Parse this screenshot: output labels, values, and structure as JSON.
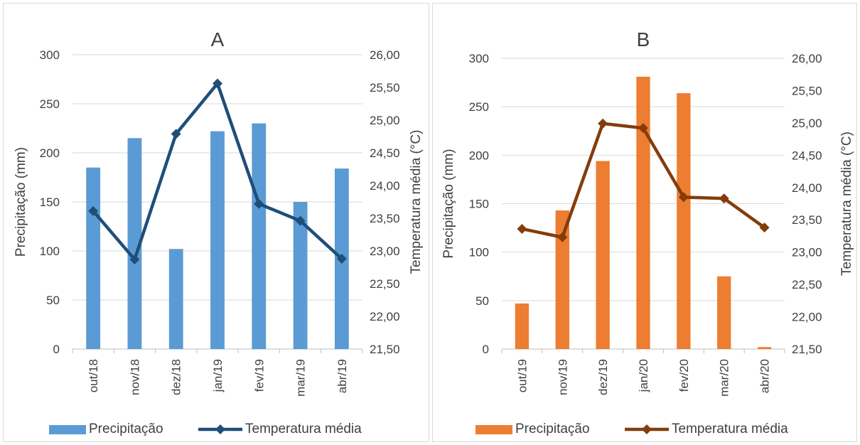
{
  "chart_data": [
    {
      "type": "bar",
      "title": "A",
      "categories": [
        "out/18",
        "nov/18",
        "dez/18",
        "jan/19",
        "fev/19",
        "mar/19",
        "abr/19"
      ],
      "ylabel": "Precipitação (mm)",
      "y2label": "Temperatura média (°C)",
      "ylim": [
        0,
        300
      ],
      "y2lim": [
        21.5,
        26.0
      ],
      "yticks": [
        "0",
        "50",
        "100",
        "150",
        "200",
        "250",
        "300"
      ],
      "y2ticks": [
        "21,50",
        "22,00",
        "22,50",
        "23,00",
        "23,50",
        "24,00",
        "24,50",
        "25,00",
        "25,50",
        "26,00"
      ],
      "series": [
        {
          "name": "Precipitação",
          "kind": "bar",
          "color": "#5b9bd5",
          "values": [
            185,
            215,
            102,
            222,
            230,
            150,
            184
          ]
        },
        {
          "name": "Temperatura média",
          "kind": "line",
          "axis": "secondary",
          "color": "#1f4e79",
          "marker": "diamond",
          "values": [
            23.61,
            22.87,
            24.79,
            25.56,
            23.72,
            23.46,
            22.88
          ]
        }
      ],
      "legend": "bottom",
      "grid": true
    },
    {
      "type": "bar",
      "title": "B",
      "categories": [
        "out/19",
        "nov/19",
        "dez/19",
        "jan/20",
        "fev/20",
        "mar/20",
        "abr/20"
      ],
      "ylabel": "Precipitação (mm)",
      "y2label": "Temperatura média (°C)",
      "ylim": [
        0,
        300
      ],
      "y2lim": [
        21.5,
        26.0
      ],
      "yticks": [
        "0",
        "50",
        "100",
        "150",
        "200",
        "250",
        "300"
      ],
      "y2ticks": [
        "21,50",
        "22,00",
        "22,50",
        "23,00",
        "23,50",
        "24,00",
        "24,50",
        "25,00",
        "25,50",
        "26,00"
      ],
      "series": [
        {
          "name": "Precipitação",
          "kind": "bar",
          "color": "#ed7d31",
          "values": [
            47,
            143,
            194,
            281,
            264,
            75,
            2
          ]
        },
        {
          "name": "Temperatura média",
          "kind": "line",
          "axis": "secondary",
          "color": "#843c0c",
          "marker": "diamond",
          "values": [
            23.36,
            23.23,
            24.99,
            24.92,
            23.85,
            23.83,
            23.38
          ]
        }
      ],
      "legend": "bottom",
      "grid": true
    }
  ]
}
